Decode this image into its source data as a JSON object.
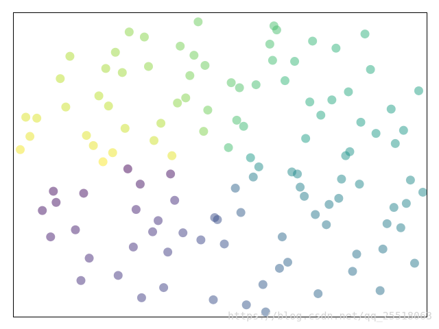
{
  "chart_data": {
    "type": "scatter",
    "x": [
      -0.12,
      0.45,
      -0.83,
      1.02,
      0.31,
      -1.21,
      0.67,
      -0.45,
      0.08,
      1.35,
      -0.66,
      0.22,
      -0.95,
      0.88,
      -0.31,
      0.54,
      -1.38,
      1.18,
      -0.05,
      0.73,
      -0.58,
      0.15,
      1.44,
      -0.78,
      0.39,
      -1.05,
      0.96,
      -0.22,
      0.61,
      -0.41,
      1.27,
      -1.12,
      0.03,
      0.84,
      -0.69,
      0.28,
      -1.29,
      1.09,
      -0.16,
      0.49,
      -0.88,
      0.71,
      -0.36,
      1.21,
      -0.52,
      0.12,
      -1.45,
      0.93,
      -0.27,
      0.58,
      -0.74,
      1.38,
      -0.09,
      0.36,
      -1.16,
      0.79,
      -0.48,
      0.19,
      -0.99,
      1.13,
      0.26,
      -0.63,
      0.91,
      -0.19,
      1.31,
      -0.85,
      0.43,
      -1.33,
      0.65,
      -0.04,
      0.99,
      -0.55,
      0.17,
      -1.01,
      1.24,
      -0.33,
      0.52,
      -0.71,
      1.47,
      -0.14,
      0.38,
      -0.92,
      0.77,
      -0.43,
      1.05,
      -1.23,
      0.11,
      0.62,
      -0.61,
      1.16,
      -0.25,
      0.47,
      -1.09,
      0.86,
      -0.38,
      0.06,
      -0.81,
      1.33,
      -0.57,
      0.24,
      -1.41,
      0.69,
      -0.11,
      1.01,
      -0.67,
      0.33,
      -0.97,
      0.81,
      -0.29,
      1.41,
      -0.49,
      0.14,
      -1.19,
      0.56,
      -0.76,
      0.94,
      -0.02,
      1.26,
      -0.35,
      0.41
    ],
    "y": [
      0.33,
      -0.71,
      0.95,
      0.42,
      -1.18,
      -0.26,
      1.22,
      -0.55,
      0.81,
      -0.38,
      1.31,
      0.07,
      -0.92,
      -0.14,
      0.61,
      1.02,
      0.28,
      -0.83,
      -1.33,
      0.49,
      -0.19,
      -0.47,
      0.73,
      0.12,
      1.37,
      -0.64,
      -1.05,
      0.88,
      -0.31,
      -1.21,
      0.21,
      0.57,
      -0.78,
      1.15,
      0.36,
      -0.02,
      -0.45,
      0.94,
      1.41,
      -0.96,
      0.68,
      -1.27,
      -0.09,
      -0.58,
      0.97,
      0.44,
      0.15,
      0.72,
      -0.67,
      -0.22,
      -1.09,
      -0.15,
      0.54,
      1.19,
      0.85,
      -0.39,
      0.24,
      -1.38,
      -0.28,
      0.31,
      0.79,
      -0.81,
      0.09,
      1.08,
      -0.62,
      0.03,
      -1.02,
      0.46,
      0.62,
      -0.52,
      -0.88,
      1.26,
      0.38,
      -1.14,
      0.55,
      -0.35,
      -0.07,
      0.91,
      -0.27,
      -0.74,
      1.03,
      0.19,
      -0.59,
      0.41,
      1.29,
      -0.71,
      -0.23,
      0.26,
      -0.44,
      -1.24,
      0.66,
      0.83,
      1.07,
      -0.33,
      -0.86,
      0.17,
      0.58,
      0.34,
      -1.31,
      -0.12,
      0.47,
      -0.49,
      0.98,
      -0.19,
      -0.04,
      -1.45,
      0.29,
      0.64,
      1.17,
      -0.97,
      -0.66,
      0.76,
      -0.37,
      -0.09,
      1.11,
      0.13,
      -0.54,
      -0.42,
      0.09,
      1.33
    ],
    "xlim": [
      -1.5,
      1.5
    ],
    "ylim": [
      -1.5,
      1.5
    ],
    "colormap": [
      "#440154",
      "#482878",
      "#3e4989",
      "#31688e",
      "#26828e",
      "#1f9e89",
      "#35b779",
      "#6ece58",
      "#b5de2b",
      "#fde725"
    ],
    "alpha": 0.5,
    "watermark": "https://blog.csdn.net/qq_25518063"
  }
}
